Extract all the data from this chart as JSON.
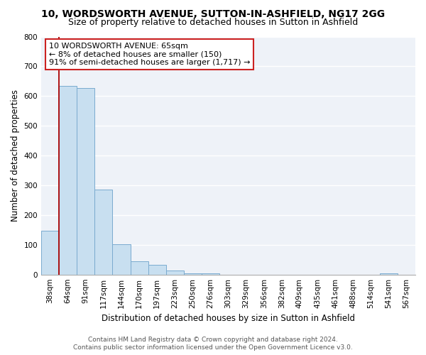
{
  "title": "10, WORDSWORTH AVENUE, SUTTON-IN-ASHFIELD, NG17 2GG",
  "subtitle": "Size of property relative to detached houses in Sutton in Ashfield",
  "xlabel": "Distribution of detached houses by size in Sutton in Ashfield",
  "ylabel": "Number of detached properties",
  "bar_labels": [
    "38sqm",
    "64sqm",
    "91sqm",
    "117sqm",
    "144sqm",
    "170sqm",
    "197sqm",
    "223sqm",
    "250sqm",
    "276sqm",
    "303sqm",
    "329sqm",
    "356sqm",
    "382sqm",
    "409sqm",
    "435sqm",
    "461sqm",
    "488sqm",
    "514sqm",
    "541sqm",
    "567sqm"
  ],
  "bar_values": [
    148,
    635,
    627,
    285,
    101,
    45,
    32,
    14,
    5,
    5,
    0,
    0,
    0,
    0,
    0,
    0,
    0,
    0,
    0,
    5,
    0
  ],
  "bar_color": "#c8dff0",
  "bar_edge_color": "#7aabcf",
  "vline_color": "#aa0000",
  "vline_x_index": 1,
  "ylim": [
    0,
    800
  ],
  "yticks": [
    0,
    100,
    200,
    300,
    400,
    500,
    600,
    700,
    800
  ],
  "annotation_text_line1": "10 WORDSWORTH AVENUE: 65sqm",
  "annotation_text_line2": "← 8% of detached houses are smaller (150)",
  "annotation_text_line3": "91% of semi-detached houses are larger (1,717) →",
  "ann_box_edge_color": "#cc2222",
  "background_color": "#ffffff",
  "plot_bg_color": "#eef2f8",
  "grid_color": "#ffffff",
  "title_fontsize": 10,
  "subtitle_fontsize": 9,
  "axis_label_fontsize": 8.5,
  "tick_fontsize": 7.5,
  "annotation_fontsize": 8,
  "footer_fontsize": 6.5,
  "footer_line1": "Contains HM Land Registry data © Crown copyright and database right 2024.",
  "footer_line2": "Contains public sector information licensed under the Open Government Licence v3.0."
}
